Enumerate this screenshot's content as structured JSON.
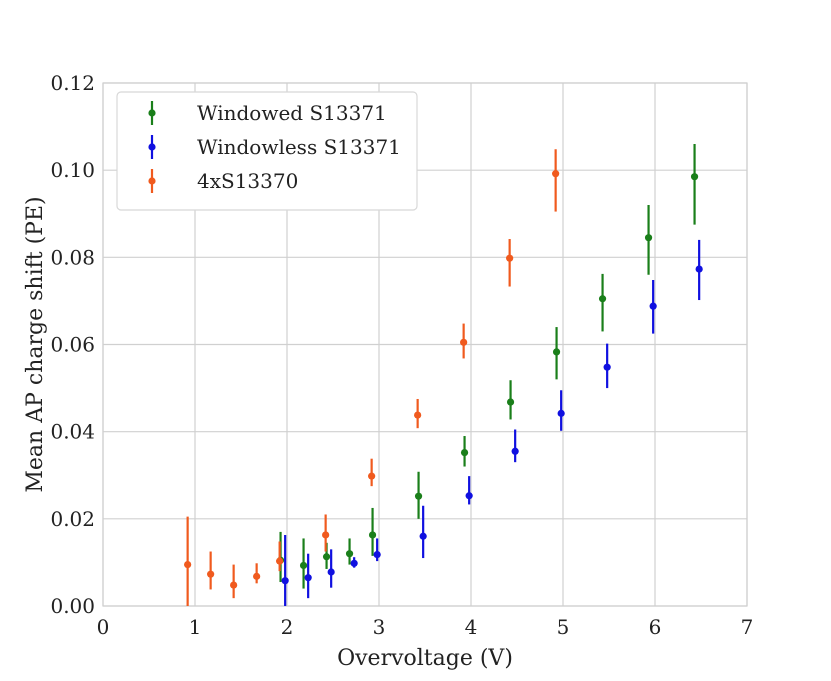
{
  "chart_data": {
    "type": "scatter",
    "title": "",
    "xlabel": "Overvoltage (V)",
    "ylabel": "Mean AP charge shift (PE)",
    "xlim": [
      0,
      7
    ],
    "ylim": [
      0,
      0.12
    ],
    "xticks": [
      0,
      1,
      2,
      3,
      4,
      5,
      6,
      7
    ],
    "xtick_labels": [
      "0",
      "1",
      "2",
      "3",
      "4",
      "5",
      "6",
      "7"
    ],
    "yticks": [
      0,
      0.02,
      0.04,
      0.06,
      0.08,
      0.1,
      0.12
    ],
    "ytick_labels": [
      "0.00",
      "0.02",
      "0.04",
      "0.06",
      "0.08",
      "0.10",
      "0.12"
    ],
    "grid": true,
    "legend_position": "top-left",
    "series": [
      {
        "name": "Windowed S13371",
        "color": "#1a7f1a",
        "points": [
          {
            "x": 1.93,
            "y": 0.0105,
            "lo": 0.0055,
            "hi": 0.017
          },
          {
            "x": 2.18,
            "y": 0.0093,
            "lo": 0.004,
            "hi": 0.0155
          },
          {
            "x": 2.43,
            "y": 0.0113,
            "lo": 0.0085,
            "hi": 0.0145
          },
          {
            "x": 2.68,
            "y": 0.012,
            "lo": 0.0095,
            "hi": 0.0155
          },
          {
            "x": 2.93,
            "y": 0.0163,
            "lo": 0.0115,
            "hi": 0.0225
          },
          {
            "x": 3.43,
            "y": 0.0252,
            "lo": 0.02,
            "hi": 0.0308
          },
          {
            "x": 3.93,
            "y": 0.0352,
            "lo": 0.032,
            "hi": 0.039
          },
          {
            "x": 4.43,
            "y": 0.0468,
            "lo": 0.0428,
            "hi": 0.0518
          },
          {
            "x": 4.93,
            "y": 0.0583,
            "lo": 0.052,
            "hi": 0.064
          },
          {
            "x": 5.43,
            "y": 0.0705,
            "lo": 0.063,
            "hi": 0.0762
          },
          {
            "x": 5.93,
            "y": 0.0845,
            "lo": 0.076,
            "hi": 0.092
          },
          {
            "x": 6.43,
            "y": 0.0985,
            "lo": 0.0875,
            "hi": 0.106
          }
        ]
      },
      {
        "name": "Windowless S13371",
        "color": "#1010e0",
        "points": [
          {
            "x": 1.98,
            "y": 0.0058,
            "lo": 0.0,
            "hi": 0.0163
          },
          {
            "x": 2.23,
            "y": 0.0065,
            "lo": 0.0018,
            "hi": 0.012
          },
          {
            "x": 2.48,
            "y": 0.0078,
            "lo": 0.0042,
            "hi": 0.013
          },
          {
            "x": 2.73,
            "y": 0.0098,
            "lo": 0.0088,
            "hi": 0.0112
          },
          {
            "x": 2.98,
            "y": 0.0118,
            "lo": 0.0103,
            "hi": 0.0155
          },
          {
            "x": 3.48,
            "y": 0.016,
            "lo": 0.011,
            "hi": 0.023
          },
          {
            "x": 3.98,
            "y": 0.0253,
            "lo": 0.0233,
            "hi": 0.0298
          },
          {
            "x": 4.48,
            "y": 0.0355,
            "lo": 0.033,
            "hi": 0.0405
          },
          {
            "x": 4.98,
            "y": 0.0442,
            "lo": 0.0402,
            "hi": 0.0495
          },
          {
            "x": 5.48,
            "y": 0.0548,
            "lo": 0.05,
            "hi": 0.0602
          },
          {
            "x": 5.98,
            "y": 0.0688,
            "lo": 0.0625,
            "hi": 0.0748
          },
          {
            "x": 6.48,
            "y": 0.0773,
            "lo": 0.0702,
            "hi": 0.084
          }
        ]
      },
      {
        "name": "4xS13370",
        "color": "#f05a1e",
        "points": [
          {
            "x": 0.92,
            "y": 0.0095,
            "lo": 0.0,
            "hi": 0.0205
          },
          {
            "x": 1.17,
            "y": 0.0073,
            "lo": 0.0038,
            "hi": 0.0125
          },
          {
            "x": 1.42,
            "y": 0.0048,
            "lo": 0.0018,
            "hi": 0.0095
          },
          {
            "x": 1.67,
            "y": 0.0068,
            "lo": 0.0052,
            "hi": 0.0098
          },
          {
            "x": 1.92,
            "y": 0.0103,
            "lo": 0.008,
            "hi": 0.0148
          },
          {
            "x": 2.42,
            "y": 0.0163,
            "lo": 0.0125,
            "hi": 0.021
          },
          {
            "x": 2.92,
            "y": 0.0298,
            "lo": 0.0275,
            "hi": 0.0338
          },
          {
            "x": 3.42,
            "y": 0.0438,
            "lo": 0.0408,
            "hi": 0.0475
          },
          {
            "x": 3.92,
            "y": 0.0605,
            "lo": 0.0568,
            "hi": 0.0648
          },
          {
            "x": 4.42,
            "y": 0.0798,
            "lo": 0.0733,
            "hi": 0.0842
          },
          {
            "x": 4.92,
            "y": 0.0992,
            "lo": 0.0905,
            "hi": 0.1048
          }
        ]
      }
    ]
  }
}
